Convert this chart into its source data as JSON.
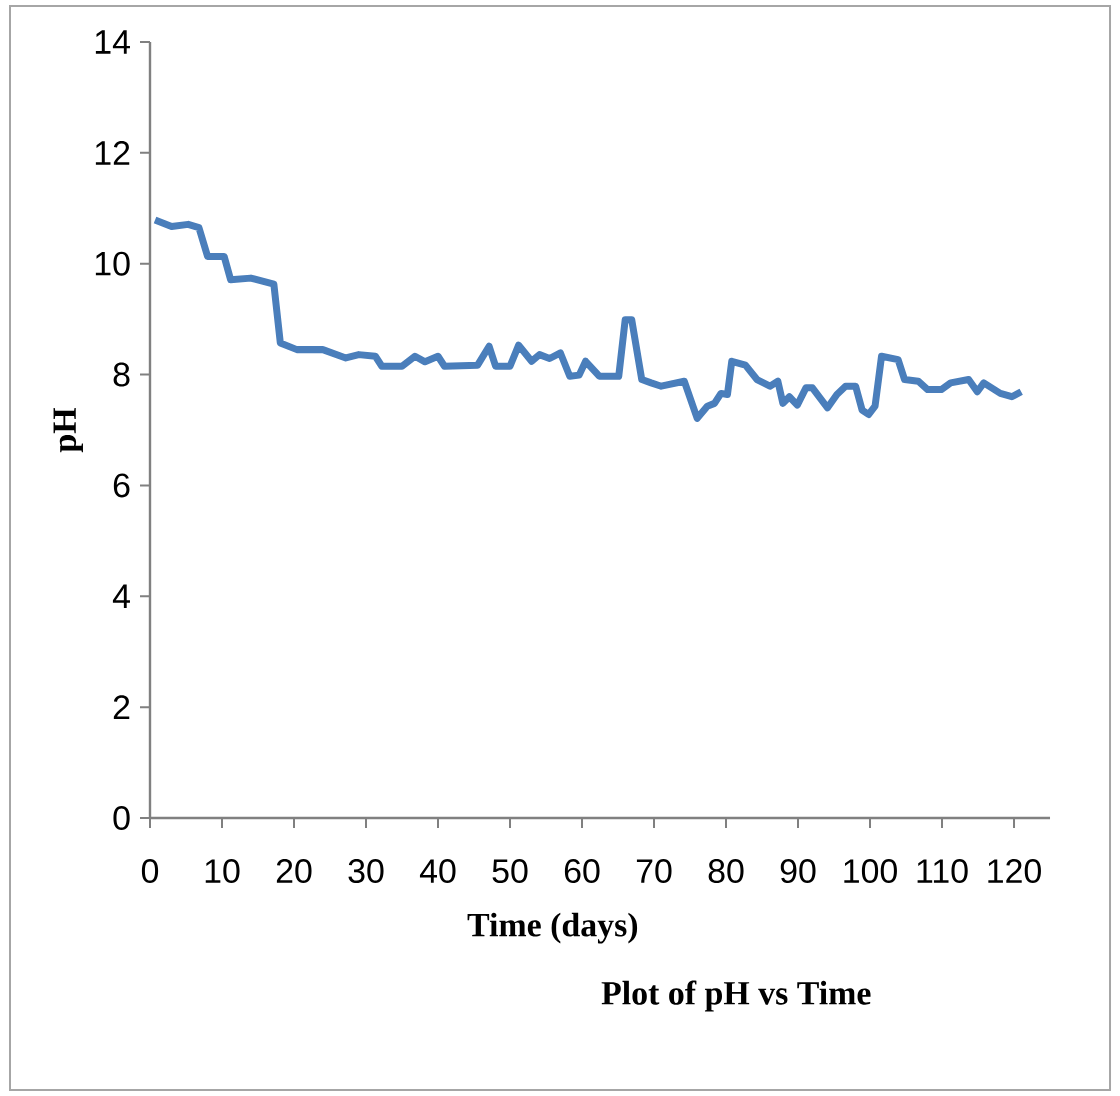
{
  "chart_data": {
    "type": "line",
    "title": "Plot of pH vs Time",
    "xlabel": "Time (days)",
    "ylabel": "pH",
    "xlim": [
      0,
      125
    ],
    "ylim": [
      0,
      14
    ],
    "xticks": [
      0,
      10,
      20,
      30,
      40,
      50,
      60,
      70,
      80,
      90,
      100,
      110,
      120
    ],
    "yticks": [
      0,
      2,
      4,
      6,
      8,
      10,
      12,
      14
    ],
    "line_style": "solid",
    "series": [
      {
        "color": "#4a7ebb",
        "x": [
          0.7,
          3,
          5.3,
          6.8,
          8,
          10.3,
          11.2,
          14,
          17.2,
          18.1,
          20.4,
          24,
          27.2,
          29,
          31.3,
          32.2,
          35,
          36.8,
          38.2,
          40,
          40.9,
          45.5,
          47.1,
          48,
          50,
          51.2,
          53,
          54.1,
          55.5,
          57,
          58.3,
          59.6,
          60.5,
          62.4,
          65.1,
          66,
          66.9,
          68.3,
          69.6,
          71,
          74.2,
          76,
          77.4,
          78.4,
          79.3,
          80.2,
          80.8,
          82.7,
          84.3,
          86.1,
          87.2,
          87.9,
          88.8,
          89.9,
          91.1,
          92,
          94.1,
          95.4,
          96.6,
          98,
          98.9,
          99.8,
          100.7,
          101.6,
          103.9,
          104.8,
          106.7,
          108,
          109.9,
          111.2,
          113.7,
          114.9,
          115.8,
          118.1,
          119.7,
          121
        ],
        "values": [
          10.79,
          10.67,
          10.71,
          10.65,
          10.13,
          10.13,
          9.71,
          9.74,
          9.63,
          8.57,
          8.45,
          8.45,
          8.3,
          8.36,
          8.33,
          8.15,
          8.15,
          8.33,
          8.23,
          8.33,
          8.15,
          8.17,
          8.51,
          8.15,
          8.15,
          8.53,
          8.24,
          8.36,
          8.29,
          8.39,
          7.97,
          7.99,
          8.24,
          7.97,
          7.97,
          8.99,
          8.99,
          7.91,
          7.85,
          7.79,
          7.88,
          7.21,
          7.43,
          7.48,
          7.66,
          7.64,
          8.24,
          8.17,
          7.91,
          7.79,
          7.88,
          7.48,
          7.6,
          7.45,
          7.76,
          7.76,
          7.4,
          7.64,
          7.79,
          7.79,
          7.36,
          7.28,
          7.43,
          8.33,
          8.27,
          7.91,
          7.88,
          7.73,
          7.73,
          7.85,
          7.91,
          7.69,
          7.85,
          7.66,
          7.6,
          7.69
        ]
      }
    ]
  }
}
